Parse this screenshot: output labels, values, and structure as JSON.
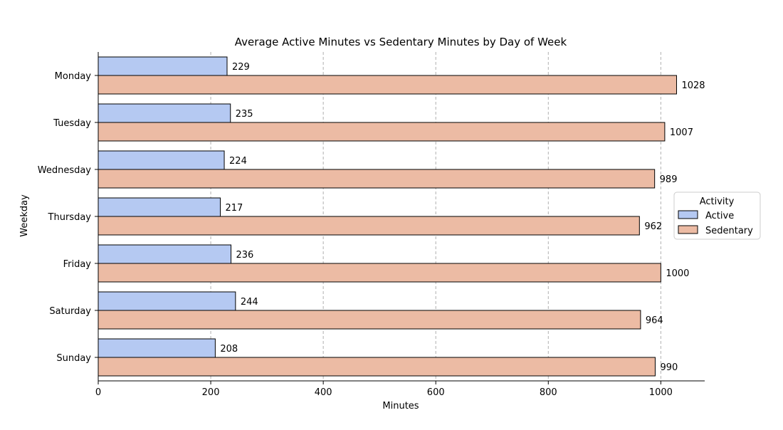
{
  "chart_data": {
    "type": "bar",
    "orientation": "horizontal",
    "title": "Average Active Minutes vs Sedentary Minutes by Day of Week",
    "xlabel": "Minutes",
    "ylabel": "Weekday",
    "categories": [
      "Monday",
      "Tuesday",
      "Wednesday",
      "Thursday",
      "Friday",
      "Saturday",
      "Sunday"
    ],
    "series": [
      {
        "name": "Active",
        "color": "#b5c9f2",
        "values": [
          229,
          235,
          224,
          217,
          236,
          244,
          208
        ]
      },
      {
        "name": "Sedentary",
        "color": "#ecbba4",
        "values": [
          1028,
          1007,
          989,
          962,
          1000,
          964,
          990
        ]
      }
    ],
    "xlim": [
      0,
      1078
    ],
    "xticks": [
      0,
      200,
      400,
      600,
      800,
      1000
    ],
    "grid": "x-dashed",
    "legend": {
      "title": "Activity",
      "placement": "center-right"
    }
  }
}
